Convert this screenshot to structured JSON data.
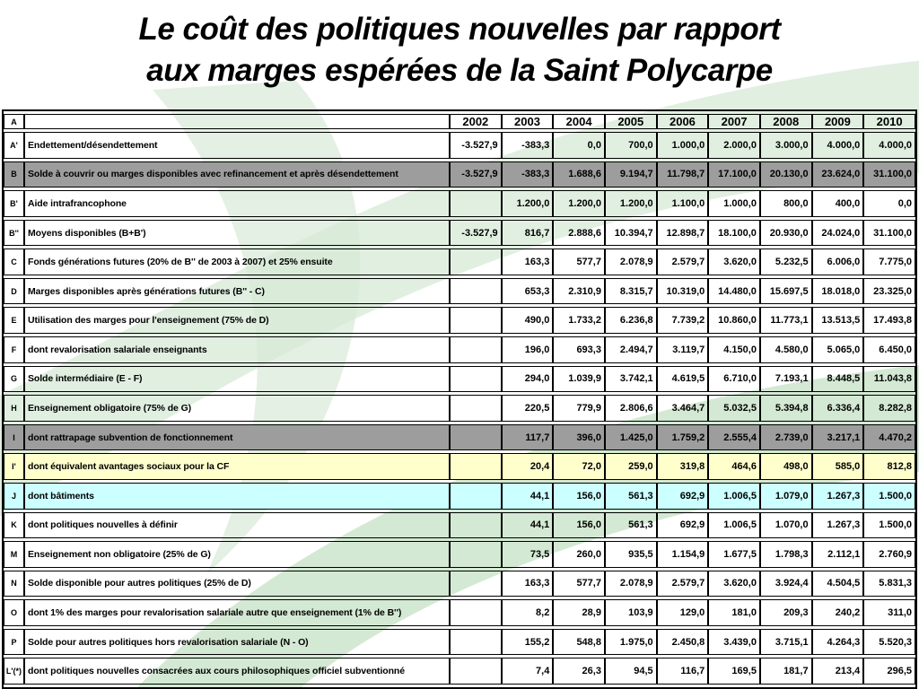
{
  "title": {
    "line1": "Le coût des politiques nouvelles par rapport",
    "line2": "aux marges espérées de la Saint Polycarpe"
  },
  "colors": {
    "row_gray": "#9d9d9d",
    "row_yellow": "#ffffcc",
    "row_cyan": "#ccffff",
    "watermark_green_light": "#d7ead7",
    "watermark_green_mid": "#c6e2c6"
  },
  "table": {
    "corner_letter": "A",
    "years": [
      "2002",
      "2003",
      "2004",
      "2005",
      "2006",
      "2007",
      "2008",
      "2009",
      "2010"
    ],
    "rows": [
      {
        "letter": "A'",
        "style": "plain",
        "label": "Endettement/désendettement",
        "values": [
          "-3.527,9",
          "-383,3",
          "0,0",
          "700,0",
          "1.000,0",
          "2.000,0",
          "3.000,0",
          "4.000,0",
          "4.000,0"
        ]
      },
      {
        "letter": "B",
        "style": "gray",
        "label": "Solde à couvrir ou marges disponibles avec refinancement et après désendettement",
        "values": [
          "-3.527,9",
          "-383,3",
          "1.688,6",
          "9.194,7",
          "11.798,7",
          "17.100,0",
          "20.130,0",
          "23.624,0",
          "31.100,0"
        ]
      },
      {
        "letter": "B'",
        "style": "plain",
        "label": "Aide intrafrancophone",
        "values": [
          "",
          "1.200,0",
          "1.200,0",
          "1.200,0",
          "1.100,0",
          "1.000,0",
          "800,0",
          "400,0",
          "0,0"
        ]
      },
      {
        "letter": "B''",
        "style": "plain",
        "label": "Moyens disponibles (B+B')",
        "values": [
          "-3.527,9",
          "816,7",
          "2.888,6",
          "10.394,7",
          "12.898,7",
          "18.100,0",
          "20.930,0",
          "24.024,0",
          "31.100,0"
        ]
      },
      {
        "letter": "C",
        "style": "plain",
        "label": "Fonds générations futures (20% de B'' de 2003 à 2007) et 25% ensuite",
        "values": [
          "",
          "163,3",
          "577,7",
          "2.078,9",
          "2.579,7",
          "3.620,0",
          "5.232,5",
          "6.006,0",
          "7.775,0"
        ]
      },
      {
        "letter": "D",
        "style": "plain",
        "label": "Marges disponibles après générations futures (B'' - C)",
        "values": [
          "",
          "653,3",
          "2.310,9",
          "8.315,7",
          "10.319,0",
          "14.480,0",
          "15.697,5",
          "18.018,0",
          "23.325,0"
        ]
      },
      {
        "letter": "E",
        "style": "plain",
        "label": "Utilisation des marges pour l'enseignement (75% de D)",
        "values": [
          "",
          "490,0",
          "1.733,2",
          "6.236,8",
          "7.739,2",
          "10.860,0",
          "11.773,1",
          "13.513,5",
          "17.493,8"
        ]
      },
      {
        "letter": "F",
        "style": "plain",
        "label": "dont revalorisation salariale enseignants",
        "values": [
          "",
          "196,0",
          "693,3",
          "2.494,7",
          "3.119,7",
          "4.150,0",
          "4.580,0",
          "5.065,0",
          "6.450,0"
        ]
      },
      {
        "letter": "G",
        "style": "plain",
        "label": "Solde intermédiaire (E - F)",
        "values": [
          "",
          "294,0",
          "1.039,9",
          "3.742,1",
          "4.619,5",
          "6.710,0",
          "7.193,1",
          "8.448,5",
          "11.043,8"
        ]
      },
      {
        "letter": "H",
        "style": "plain",
        "label": "Enseignement obligatoire (75% de G)",
        "values": [
          "",
          "220,5",
          "779,9",
          "2.806,6",
          "3.464,7",
          "5.032,5",
          "5.394,8",
          "6.336,4",
          "8.282,8"
        ]
      },
      {
        "letter": "I",
        "style": "gray",
        "label": "dont rattrapage subvention de fonctionnement",
        "values": [
          "",
          "117,7",
          "396,0",
          "1.425,0",
          "1.759,2",
          "2.555,4",
          "2.739,0",
          "3.217,1",
          "4.470,2"
        ]
      },
      {
        "letter": "I'",
        "style": "yellow",
        "label": "dont équivalent avantages sociaux pour la CF",
        "values": [
          "",
          "20,4",
          "72,0",
          "259,0",
          "319,8",
          "464,6",
          "498,0",
          "585,0",
          "812,8"
        ]
      },
      {
        "letter": "J",
        "style": "cyan",
        "label": "dont bâtiments",
        "values": [
          "",
          "44,1",
          "156,0",
          "561,3",
          "692,9",
          "1.006,5",
          "1.079,0",
          "1.267,3",
          "1.500,0"
        ]
      },
      {
        "letter": "K",
        "style": "plain",
        "label": "dont politiques nouvelles à définir",
        "values": [
          "",
          "44,1",
          "156,0",
          "561,3",
          "692,9",
          "1.006,5",
          "1.070,0",
          "1.267,3",
          "1.500,0"
        ]
      },
      {
        "letter": "M",
        "style": "plain",
        "label": "Enseignement non obligatoire (25% de G)",
        "values": [
          "",
          "73,5",
          "260,0",
          "935,5",
          "1.154,9",
          "1.677,5",
          "1.798,3",
          "2.112,1",
          "2.760,9"
        ]
      },
      {
        "letter": "N",
        "style": "plain",
        "label": "Solde disponible pour autres politiques (25% de D)",
        "values": [
          "",
          "163,3",
          "577,7",
          "2.078,9",
          "2.579,7",
          "3.620,0",
          "3.924,4",
          "4.504,5",
          "5.831,3"
        ]
      },
      {
        "letter": "O",
        "style": "plain",
        "label": "dont 1% des marges pour revalorisation salariale autre que enseignement (1% de B'')",
        "values": [
          "",
          "8,2",
          "28,9",
          "103,9",
          "129,0",
          "181,0",
          "209,3",
          "240,2",
          "311,0"
        ]
      },
      {
        "letter": "P",
        "style": "plain",
        "label": "Solde pour autres politiques hors revalorisation salariale (N - O)",
        "values": [
          "",
          "155,2",
          "548,8",
          "1.975,0",
          "2.450,8",
          "3.439,0",
          "3.715,1",
          "4.264,3",
          "5.520,3"
        ]
      },
      {
        "letter": "L'(*)",
        "style": "plain",
        "label": "dont politiques nouvelles consacrées aux cours philosophiques officiel subventionné",
        "values": [
          "",
          "7,4",
          "26,3",
          "94,5",
          "116,7",
          "169,5",
          "181,7",
          "213,4",
          "296,5"
        ]
      }
    ]
  }
}
